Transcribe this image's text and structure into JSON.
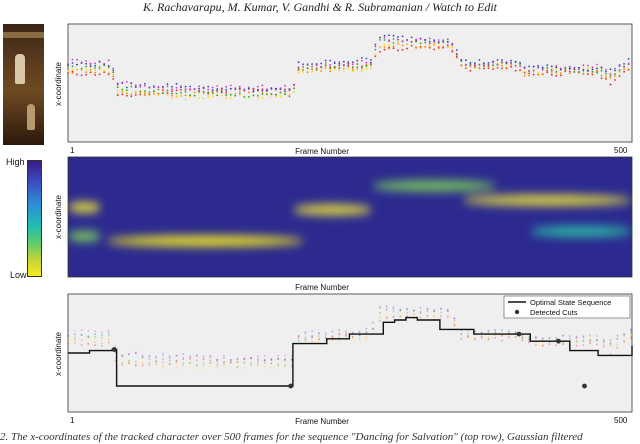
{
  "header": "K. Rachavarapu, M. Kumar, V. Gandhi & R. Subramanian / Watch to Edit",
  "caption": "2. The x-coordinates of the tracked character over 500 frames for the sequence \"Dancing for Salvation\" (top row), Gaussian filtered",
  "colors": {
    "panel_bg": "#efefef",
    "axis": "#333333",
    "optimal": "#111111"
  },
  "colorbar": {
    "high_label": "High",
    "low_label": "Low",
    "colormap": "parula"
  },
  "thumbnail": {
    "icon": "stage-frame-thumbnail"
  },
  "chart_data": [
    {
      "type": "scatter",
      "ylabel": "x-coordinate",
      "xlabel": "Frame Number",
      "tick_labels": {
        "start": "1",
        "end": "500"
      },
      "xlim": [
        1,
        500
      ],
      "ylim": [
        0,
        100
      ],
      "grid": false,
      "series": [
        {
          "color": "#e41a1c",
          "values": [
            [
              1,
              58
            ],
            [
              40,
              58
            ],
            [
              44,
              38
            ],
            [
              95,
              44
            ],
            [
              140,
              44
            ],
            [
              200,
              44
            ],
            [
              205,
              62
            ],
            [
              270,
              66
            ],
            [
              275,
              78
            ],
            [
              300,
              80
            ],
            [
              340,
              80
            ],
            [
              350,
              62
            ],
            [
              400,
              62
            ],
            [
              405,
              58
            ],
            [
              470,
              58
            ],
            [
              480,
              50
            ],
            [
              500,
              62
            ]
          ]
        },
        {
          "color": "#ff7f00",
          "values": [
            [
              1,
              60
            ],
            [
              40,
              60
            ],
            [
              44,
              42
            ],
            [
              95,
              40
            ],
            [
              140,
              42
            ],
            [
              200,
              42
            ],
            [
              205,
              60
            ],
            [
              270,
              64
            ],
            [
              275,
              80
            ],
            [
              300,
              82
            ],
            [
              340,
              80
            ],
            [
              350,
              64
            ],
            [
              400,
              64
            ],
            [
              405,
              58
            ],
            [
              470,
              60
            ],
            [
              480,
              54
            ],
            [
              500,
              64
            ]
          ]
        },
        {
          "color": "#ffd700",
          "values": [
            [
              1,
              62
            ],
            [
              40,
              62
            ],
            [
              44,
              44
            ],
            [
              95,
              38
            ],
            [
              140,
              38
            ],
            [
              200,
              40
            ],
            [
              205,
              60
            ],
            [
              270,
              62
            ],
            [
              275,
              82
            ],
            [
              300,
              84
            ],
            [
              340,
              82
            ],
            [
              350,
              64
            ],
            [
              400,
              66
            ],
            [
              405,
              60
            ],
            [
              470,
              62
            ],
            [
              480,
              56
            ],
            [
              500,
              66
            ]
          ]
        },
        {
          "color": "#2ca02c",
          "values": [
            [
              1,
              64
            ],
            [
              40,
              64
            ],
            [
              44,
              46
            ],
            [
              95,
              42
            ],
            [
              140,
              40
            ],
            [
              200,
              40
            ],
            [
              205,
              62
            ],
            [
              270,
              66
            ],
            [
              275,
              86
            ],
            [
              300,
              86
            ],
            [
              340,
              84
            ],
            [
              350,
              66
            ],
            [
              400,
              66
            ],
            [
              405,
              62
            ],
            [
              470,
              60
            ],
            [
              480,
              56
            ],
            [
              500,
              68
            ]
          ]
        },
        {
          "color": "#1f3fbf",
          "values": [
            [
              1,
              66
            ],
            [
              40,
              66
            ],
            [
              44,
              48
            ],
            [
              95,
              48
            ],
            [
              140,
              44
            ],
            [
              200,
              44
            ],
            [
              205,
              66
            ],
            [
              270,
              70
            ],
            [
              275,
              90
            ],
            [
              300,
              88
            ],
            [
              340,
              86
            ],
            [
              350,
              68
            ],
            [
              400,
              68
            ],
            [
              405,
              64
            ],
            [
              470,
              62
            ],
            [
              480,
              60
            ],
            [
              500,
              70
            ]
          ]
        },
        {
          "color": "#cc33cc",
          "values": [
            [
              1,
              68
            ],
            [
              40,
              68
            ],
            [
              44,
              50
            ],
            [
              95,
              46
            ],
            [
              140,
              46
            ],
            [
              200,
              46
            ],
            [
              205,
              64
            ],
            [
              270,
              68
            ],
            [
              275,
              88
            ],
            [
              300,
              86
            ],
            [
              340,
              86
            ],
            [
              350,
              66
            ],
            [
              400,
              66
            ],
            [
              405,
              62
            ],
            [
              470,
              64
            ],
            [
              480,
              58
            ],
            [
              500,
              68
            ]
          ]
        }
      ]
    },
    {
      "type": "heatmap",
      "ylabel": "x-coordinate",
      "xlabel": "Frame Number",
      "xlim": [
        1,
        500
      ],
      "ylim": [
        0,
        100
      ],
      "colorbar_labels": [
        "High",
        "Low"
      ],
      "ridges": [
        {
          "frames": [
            1,
            30
          ],
          "y": 58,
          "intensity": 0.8
        },
        {
          "frames": [
            1,
            30
          ],
          "y": 34,
          "intensity": 0.6
        },
        {
          "frames": [
            35,
            210
          ],
          "y": 30,
          "intensity": 1.0
        },
        {
          "frames": [
            200,
            270
          ],
          "y": 56,
          "intensity": 0.85
        },
        {
          "frames": [
            270,
            380
          ],
          "y": 76,
          "intensity": 0.6
        },
        {
          "frames": [
            350,
            500
          ],
          "y": 64,
          "intensity": 0.9
        },
        {
          "frames": [
            410,
            500
          ],
          "y": 38,
          "intensity": 0.45
        }
      ]
    },
    {
      "type": "line",
      "ylabel": "x-coordinate",
      "xlabel": "Frame Number",
      "tick_labels": {
        "start": "1",
        "end": "500"
      },
      "xlim": [
        1,
        500
      ],
      "ylim": [
        0,
        100
      ],
      "legend": {
        "position": "top-right",
        "entries": [
          "Optimal State Sequence",
          "Detected Cuts"
        ]
      },
      "optimal_state_sequence": {
        "x": [
          1,
          20,
          40,
          44,
          100,
          150,
          196,
          200,
          230,
          250,
          270,
          280,
          290,
          300,
          310,
          330,
          360,
          398,
          410,
          430,
          445,
          455,
          470,
          500
        ],
        "y": [
          50,
          52,
          53,
          22,
          22,
          22,
          22,
          58,
          62,
          66,
          66,
          76,
          78,
          80,
          78,
          70,
          66,
          66,
          60,
          60,
          52,
          52,
          48,
          56
        ]
      },
      "detected_cuts": {
        "x": [
          42,
          198,
          400,
          435,
          458
        ],
        "y": [
          53,
          22,
          66,
          60,
          22
        ]
      }
    }
  ]
}
